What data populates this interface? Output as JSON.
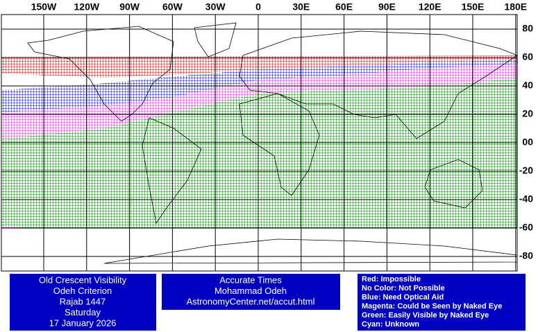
{
  "map": {
    "lon_ticks": [
      {
        "value": -150,
        "label": "150W"
      },
      {
        "value": -120,
        "label": "120W"
      },
      {
        "value": -90,
        "label": "90W"
      },
      {
        "value": -60,
        "label": "60W"
      },
      {
        "value": -30,
        "label": "30W"
      },
      0,
      {
        "value": 30,
        "label": "30E"
      },
      {
        "value": 60,
        "label": "60E"
      },
      {
        "value": 90,
        "label": "90E"
      },
      {
        "value": 120,
        "label": "120E"
      },
      {
        "value": 150,
        "label": "150E"
      },
      {
        "value": 180,
        "label": "180E"
      }
    ],
    "lat_ticks": [
      80,
      60,
      40,
      20,
      {
        "value": 0,
        "label": "00"
      },
      -20,
      -40,
      -60,
      -80
    ]
  },
  "info": {
    "left": [
      "Old Crescent Visibility",
      "Odeh Criterion",
      "Rajab 1447",
      "Saturday",
      "17 January 2026"
    ],
    "center": [
      "Accurate Times",
      "Mohammad Odeh",
      "AstronomyCenter.net/accut.html"
    ],
    "legend": [
      "Red: Impossible",
      "No Color: Not Possible",
      "Blue: Need Optical Aid",
      "Magenta: Could be Seen by Naked Eye",
      "Green: Easily Visible by Naked Eye",
      "Cyan: Unknown"
    ]
  }
}
